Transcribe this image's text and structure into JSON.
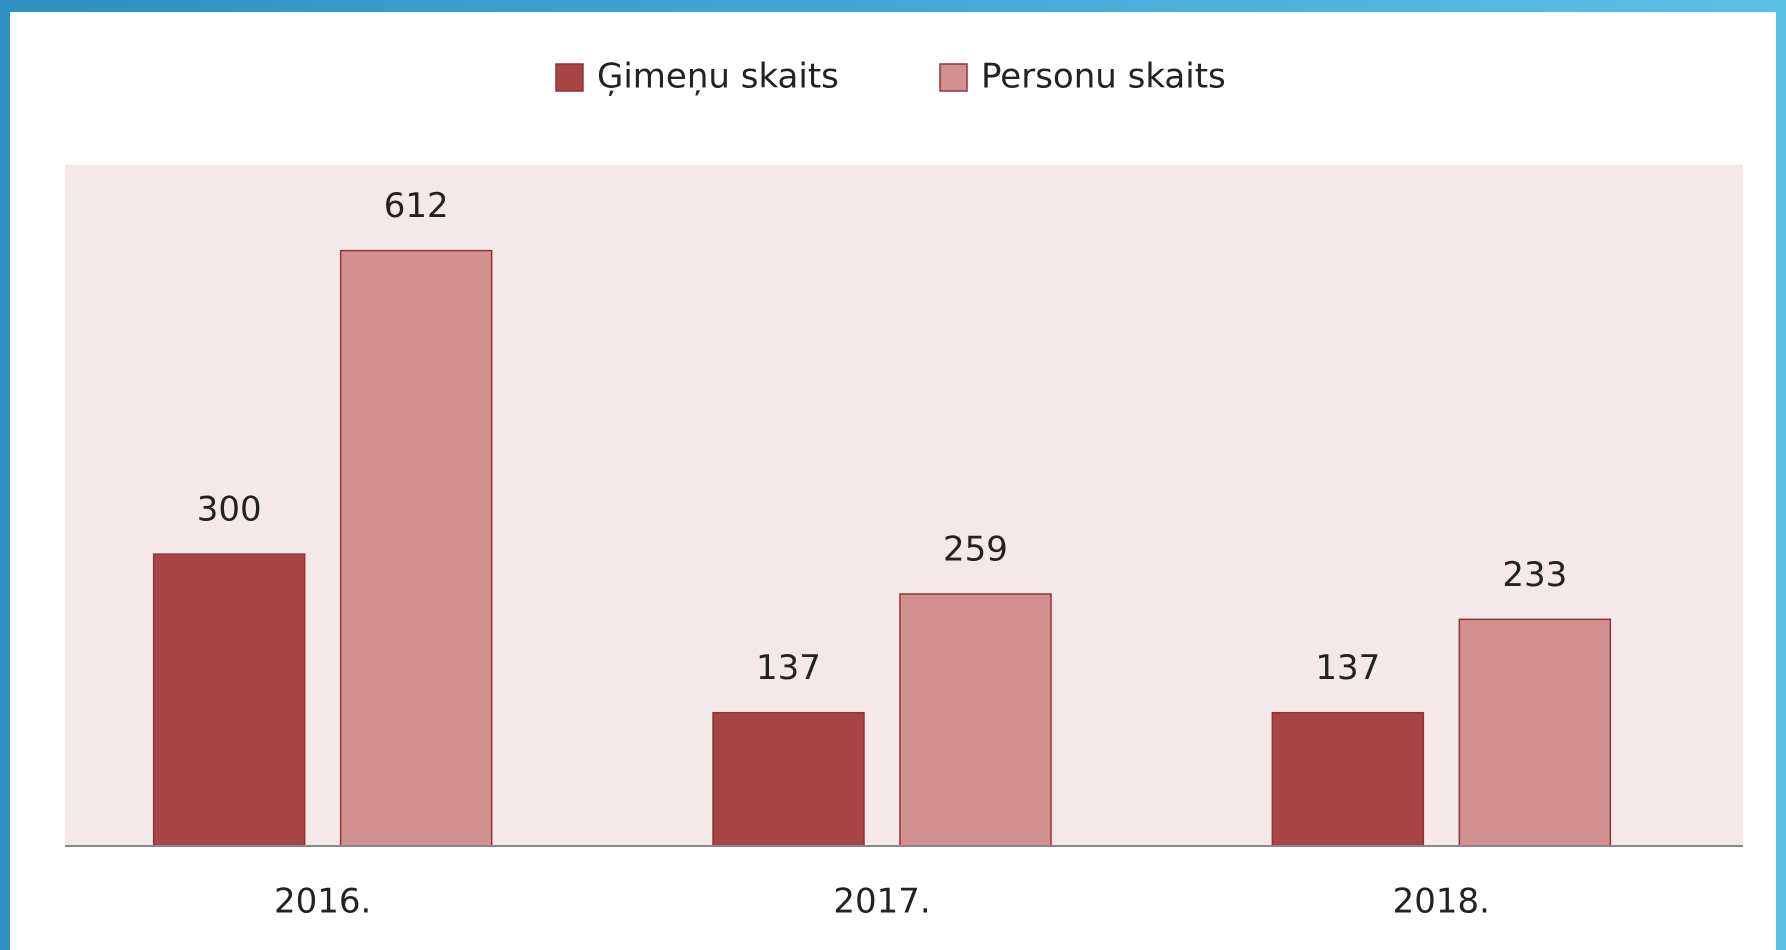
{
  "chart_data": {
    "type": "bar",
    "categories": [
      "2016.",
      "2017.",
      "2018."
    ],
    "series": [
      {
        "name": "Ģimeņu skaits",
        "color": "#a84444",
        "values": [
          300,
          137,
          137
        ]
      },
      {
        "name": "Personu skaits",
        "color": "#d39090",
        "values": [
          612,
          259,
          233
        ]
      }
    ],
    "ylim": [
      0,
      700
    ],
    "legend": "top",
    "plot_background": "#f4e8e8"
  }
}
